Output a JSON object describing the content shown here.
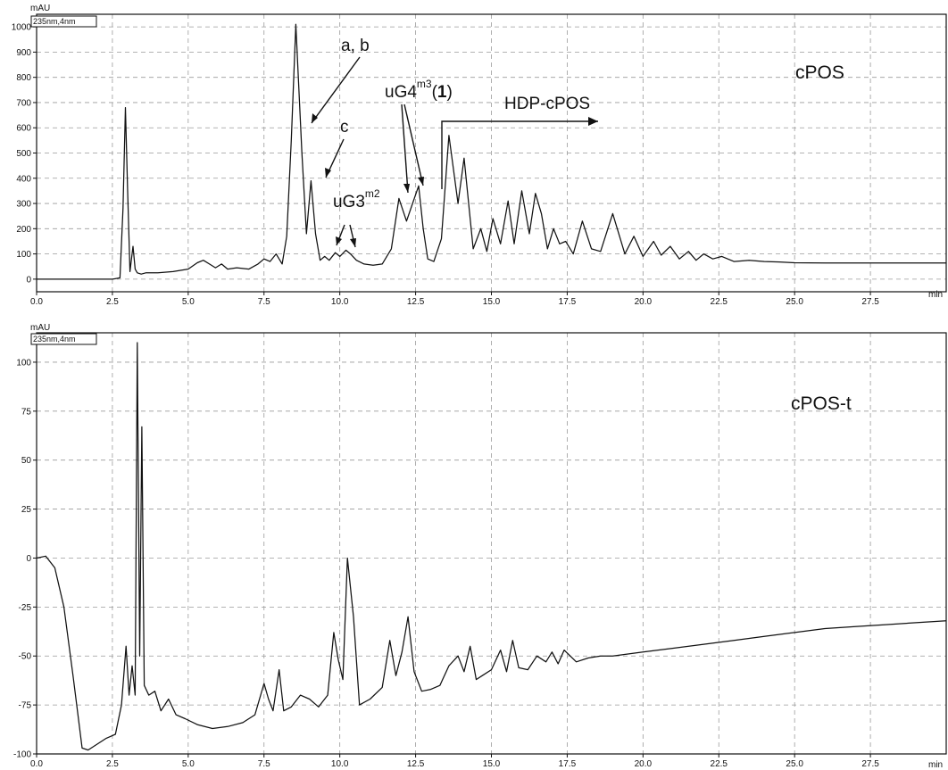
{
  "chart_data": [
    {
      "type": "line",
      "title": "cPOS",
      "y_unit_label": "mAU",
      "x_unit_label": "min",
      "legend_box_text": "235nm,4nm",
      "grid": true,
      "xlim": [
        0,
        30
      ],
      "ylim": [
        -50,
        1050
      ],
      "xticks": [
        0,
        2.5,
        5,
        7.5,
        10,
        12.5,
        15,
        17.5,
        20,
        22.5,
        25,
        27.5
      ],
      "xtick_labels": [
        "0.0",
        "2.5",
        "5.0",
        "7.5",
        "10.0",
        "12.5",
        "15.0",
        "17.5",
        "20.0",
        "22.5",
        "25.0",
        "27.5"
      ],
      "yticks": [
        0,
        100,
        200,
        300,
        400,
        500,
        600,
        700,
        800,
        900,
        1000
      ],
      "ytick_labels": [
        "0",
        "100",
        "200",
        "300",
        "400",
        "500",
        "600",
        "700",
        "800",
        "900",
        "1000"
      ],
      "series": [
        {
          "x": [
            0,
            2.5,
            2.75,
            2.85,
            2.93,
            3.0,
            3.08,
            3.18,
            3.25,
            3.32,
            3.45,
            3.6,
            4.0,
            4.5,
            5.0,
            5.3,
            5.5,
            5.7,
            5.9,
            6.1,
            6.3,
            6.6,
            7.0,
            7.3,
            7.5,
            7.7,
            7.9,
            8.1,
            8.25,
            8.4,
            8.55,
            8.75,
            8.9,
            9.05,
            9.2,
            9.35,
            9.5,
            9.65,
            9.85,
            10.0,
            10.2,
            10.35,
            10.55,
            10.8,
            11.1,
            11.4,
            11.7,
            11.95,
            12.2,
            12.4,
            12.6,
            12.75,
            12.9,
            13.1,
            13.35,
            13.6,
            13.9,
            14.1,
            14.4,
            14.65,
            14.85,
            15.05,
            15.3,
            15.55,
            15.75,
            16.0,
            16.25,
            16.45,
            16.65,
            16.85,
            17.05,
            17.25,
            17.45,
            17.7,
            18.0,
            18.3,
            18.6,
            19.0,
            19.4,
            19.7,
            20.0,
            20.35,
            20.6,
            20.9,
            21.2,
            21.5,
            21.75,
            22.0,
            22.3,
            22.6,
            23.0,
            23.5,
            24.0,
            24.5,
            25.0,
            26.0,
            27.0,
            28.0,
            29.0,
            30.0
          ],
          "y": [
            0,
            0,
            5,
            280,
            680,
            360,
            30,
            130,
            40,
            25,
            20,
            25,
            25,
            30,
            40,
            65,
            75,
            60,
            45,
            60,
            40,
            45,
            40,
            60,
            80,
            70,
            100,
            60,
            170,
            550,
            1010,
            500,
            180,
            390,
            180,
            75,
            90,
            75,
            105,
            90,
            115,
            100,
            75,
            60,
            55,
            60,
            120,
            320,
            230,
            300,
            370,
            200,
            80,
            70,
            160,
            570,
            300,
            480,
            120,
            200,
            110,
            240,
            140,
            310,
            140,
            350,
            180,
            340,
            260,
            120,
            200,
            140,
            150,
            100,
            230,
            120,
            110,
            260,
            100,
            170,
            90,
            150,
            95,
            130,
            80,
            110,
            75,
            100,
            80,
            90,
            70,
            75,
            70,
            68,
            65,
            64,
            64,
            64,
            64,
            64
          ]
        }
      ],
      "annotations": [
        {
          "text": "a, b"
        },
        {
          "text": "c"
        },
        {
          "text": "uG3",
          "sup": "m2"
        },
        {
          "text": "uG4",
          "sup": "m3",
          "suffix_open": "(",
          "suffix_bold": "1",
          "suffix_close": ")"
        },
        {
          "text": "HDP-cPOS"
        }
      ]
    },
    {
      "type": "line",
      "title": "cPOS-t",
      "y_unit_label": "mAU",
      "x_unit_label": "min",
      "legend_box_text": "235nm,4nm",
      "grid": true,
      "xlim": [
        0,
        30
      ],
      "ylim": [
        -100,
        115
      ],
      "xticks": [
        0,
        2.5,
        5,
        7.5,
        10,
        12.5,
        15,
        17.5,
        20,
        22.5,
        25,
        27.5
      ],
      "xtick_labels": [
        "0.0",
        "2.5",
        "5.0",
        "7.5",
        "10.0",
        "12.5",
        "15.0",
        "17.5",
        "20.0",
        "22.5",
        "25.0",
        "27.5"
      ],
      "yticks": [
        -100,
        -75,
        -50,
        -25,
        0,
        25,
        50,
        75,
        100
      ],
      "ytick_labels": [
        "-100",
        "-75",
        "-50",
        "-25",
        "0",
        "25",
        "50",
        "75",
        "100"
      ],
      "series": [
        {
          "x": [
            0,
            0.3,
            0.6,
            0.9,
            1.2,
            1.5,
            1.7,
            2.0,
            2.3,
            2.6,
            2.8,
            2.95,
            3.05,
            3.15,
            3.25,
            3.32,
            3.4,
            3.47,
            3.55,
            3.7,
            3.9,
            4.1,
            4.35,
            4.6,
            4.9,
            5.3,
            5.8,
            6.3,
            6.8,
            7.2,
            7.5,
            7.65,
            7.8,
            8.0,
            8.15,
            8.4,
            8.7,
            9.0,
            9.3,
            9.6,
            9.8,
            9.95,
            10.1,
            10.25,
            10.45,
            10.65,
            11.0,
            11.4,
            11.65,
            11.85,
            12.05,
            12.25,
            12.45,
            12.7,
            13.0,
            13.3,
            13.6,
            13.9,
            14.1,
            14.3,
            14.5,
            14.7,
            15.0,
            15.3,
            15.5,
            15.7,
            15.9,
            16.2,
            16.5,
            16.8,
            17.0,
            17.2,
            17.4,
            17.8,
            18.2,
            18.6,
            19.0,
            19.5,
            20.0,
            21.0,
            22.0,
            23.0,
            24.0,
            25.0,
            26.0,
            27.0,
            28.0,
            29.0,
            30.0
          ],
          "y": [
            0,
            1,
            -5,
            -25,
            -60,
            -97,
            -98,
            -95,
            -92,
            -90,
            -75,
            -45,
            -70,
            -55,
            -70,
            110,
            -50,
            67,
            -65,
            -70,
            -68,
            -78,
            -72,
            -80,
            -82,
            -85,
            -87,
            -86,
            -84,
            -80,
            -64,
            -72,
            -78,
            -57,
            -78,
            -76,
            -70,
            -72,
            -76,
            -70,
            -38,
            -52,
            -62,
            0,
            -30,
            -75,
            -72,
            -66,
            -42,
            -60,
            -48,
            -30,
            -58,
            -68,
            -67,
            -65,
            -55,
            -50,
            -58,
            -45,
            -62,
            -60,
            -57,
            -47,
            -58,
            -42,
            -56,
            -57,
            -50,
            -53,
            -48,
            -54,
            -47,
            -53,
            -51,
            -50,
            -50,
            -49,
            -48,
            -46,
            -44,
            -42,
            -40,
            -38,
            -36,
            -35,
            -34,
            -33,
            -32
          ]
        }
      ],
      "annotations": []
    }
  ]
}
